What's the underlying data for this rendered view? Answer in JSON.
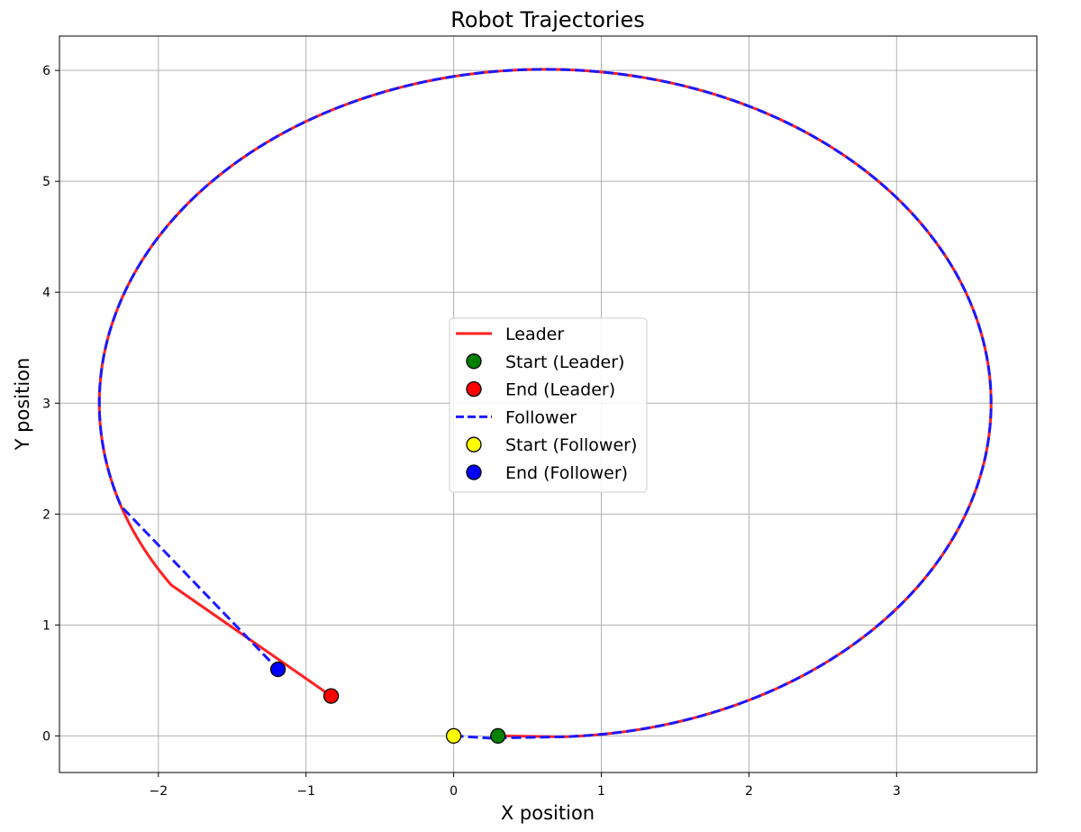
{
  "chart_data": {
    "type": "line",
    "title": "Robot Trajectories",
    "xlabel": "X position",
    "ylabel": "Y position",
    "xlim": [
      -2.67,
      3.95
    ],
    "ylim": [
      -0.33,
      6.31
    ],
    "xticks": [
      -2,
      -1,
      0,
      1,
      2,
      3
    ],
    "xtick_labels": [
      "−2",
      "−1",
      "0",
      "1",
      "2",
      "3"
    ],
    "yticks": [
      0,
      1,
      2,
      3,
      4,
      5,
      6
    ],
    "ytick_labels": [
      "0",
      "1",
      "2",
      "3",
      "4",
      "5",
      "6"
    ],
    "grid": true,
    "legend_position": "center",
    "trajectory": {
      "shape": "ellipse",
      "center": [
        0.62,
        3.0
      ],
      "radius_x": 3.02,
      "radius_y": 3.01
    },
    "series": [
      {
        "name": "Leader",
        "color": "#ff2020",
        "style": "solid",
        "start_angle_deg": -88,
        "end_angle_deg": 213,
        "start_point": [
          0.3,
          0.0
        ],
        "end_point": [
          -0.83,
          0.36
        ]
      },
      {
        "name": "Follower",
        "color": "#1a1aff",
        "style": "dashed",
        "start_angle_deg": -88,
        "end_angle_deg": 198,
        "lead_in": [
          [
            0.0,
            0.0
          ],
          [
            0.25,
            -0.02
          ]
        ],
        "start_point": [
          0.0,
          0.0
        ],
        "end_point": [
          -1.19,
          0.6
        ]
      }
    ],
    "markers": [
      {
        "name": "Start (Leader)",
        "x": 0.3,
        "y": 0.0,
        "color": "#008000"
      },
      {
        "name": "End (Leader)",
        "x": -0.83,
        "y": 0.36,
        "color": "#ff0000"
      },
      {
        "name": "Start (Follower)",
        "x": 0.0,
        "y": 0.0,
        "color": "#ffff00"
      },
      {
        "name": "End (Follower)",
        "x": -1.19,
        "y": 0.6,
        "color": "#0000ff"
      }
    ],
    "legend": [
      {
        "label": "Leader",
        "kind": "line",
        "color": "#ff2020",
        "style": "solid"
      },
      {
        "label": "Start (Leader)",
        "kind": "marker",
        "color": "#008000"
      },
      {
        "label": "End (Leader)",
        "kind": "marker",
        "color": "#ff0000"
      },
      {
        "label": "Follower",
        "kind": "line",
        "color": "#1a1aff",
        "style": "dashed"
      },
      {
        "label": "Start (Follower)",
        "kind": "marker",
        "color": "#ffff00"
      },
      {
        "label": "End (Follower)",
        "kind": "marker",
        "color": "#0000ff"
      }
    ]
  }
}
